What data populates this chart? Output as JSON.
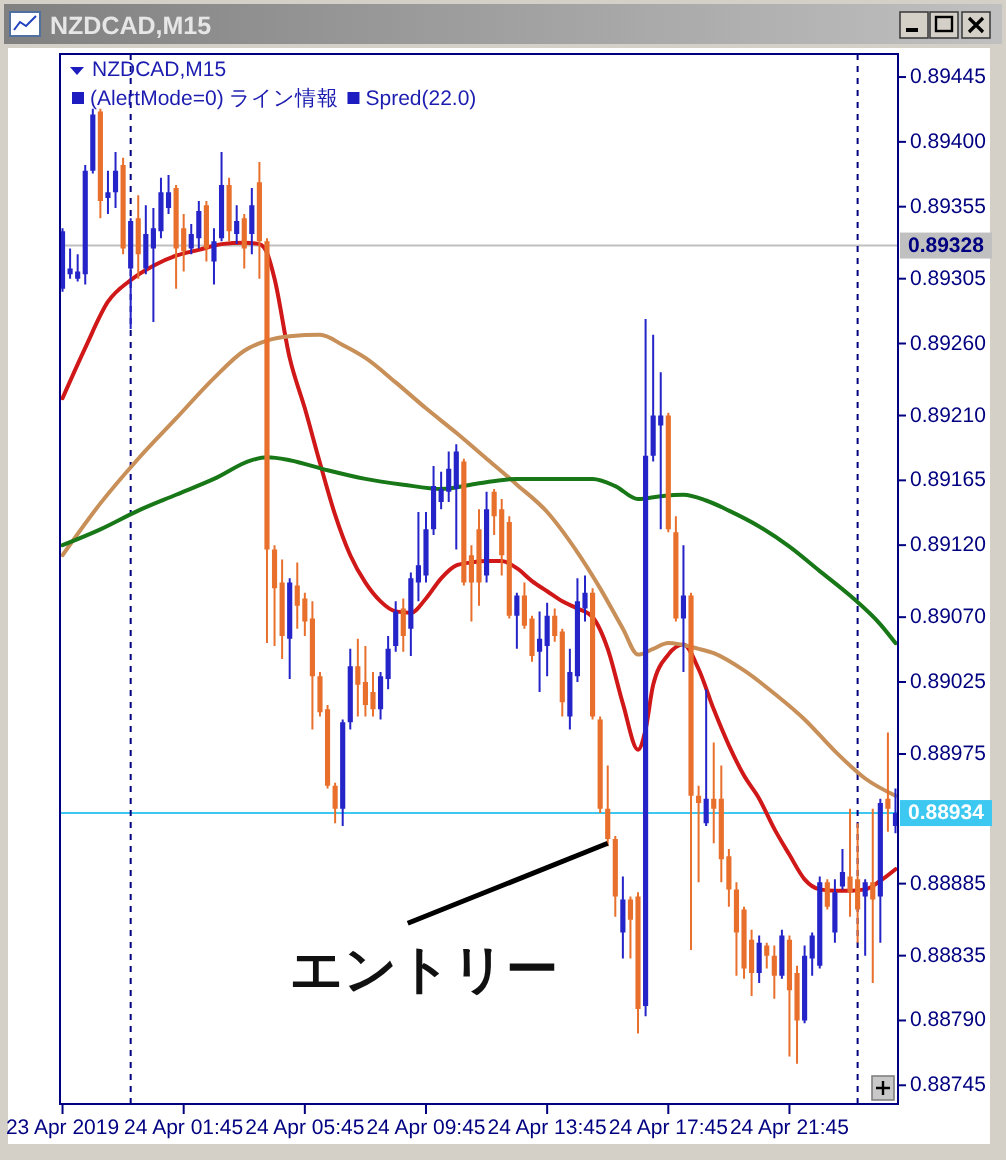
{
  "chart_data": {
    "type": "candlestick",
    "title": "NZDCAD,M15",
    "subtitle": "NZDCAD,M15",
    "annotations": [
      "(AlertMode=0) ライン情報",
      "Spred(22.0)",
      {
        "text": "エントリー",
        "x": "2019-04-24T15:45",
        "y": 0.88913
      }
    ],
    "x": [
      "2019-04-23T21:45",
      "2019-04-23T22:00",
      "2019-04-23T22:15",
      "2019-04-23T22:30",
      "2019-04-23T22:45",
      "2019-04-23T23:00",
      "2019-04-23T23:15",
      "2019-04-23T23:30",
      "2019-04-23T23:45",
      "2019-04-24T00:00",
      "2019-04-24T00:15",
      "2019-04-24T00:30",
      "2019-04-24T00:45",
      "2019-04-24T01:00",
      "2019-04-24T01:15",
      "2019-04-24T01:30",
      "2019-04-24T01:45",
      "2019-04-24T02:00",
      "2019-04-24T02:15",
      "2019-04-24T02:30",
      "2019-04-24T02:45",
      "2019-04-24T03:00",
      "2019-04-24T03:15",
      "2019-04-24T03:30",
      "2019-04-24T03:45",
      "2019-04-24T04:00",
      "2019-04-24T04:15",
      "2019-04-24T04:30",
      "2019-04-24T04:45",
      "2019-04-24T05:00",
      "2019-04-24T05:15",
      "2019-04-24T05:30",
      "2019-04-24T05:45",
      "2019-04-24T06:00",
      "2019-04-24T06:15",
      "2019-04-24T06:30",
      "2019-04-24T06:45",
      "2019-04-24T07:00",
      "2019-04-24T07:15",
      "2019-04-24T07:30",
      "2019-04-24T07:45",
      "2019-04-24T08:00",
      "2019-04-24T08:15",
      "2019-04-24T08:30",
      "2019-04-24T08:45",
      "2019-04-24T09:00",
      "2019-04-24T09:15",
      "2019-04-24T09:30",
      "2019-04-24T09:45",
      "2019-04-24T10:00",
      "2019-04-24T10:15",
      "2019-04-24T10:30",
      "2019-04-24T10:45",
      "2019-04-24T11:00",
      "2019-04-24T11:15",
      "2019-04-24T11:30",
      "2019-04-24T11:45",
      "2019-04-24T12:00",
      "2019-04-24T12:15",
      "2019-04-24T12:30",
      "2019-04-24T12:45",
      "2019-04-24T13:00",
      "2019-04-24T13:15",
      "2019-04-24T13:30",
      "2019-04-24T13:45",
      "2019-04-24T14:00",
      "2019-04-24T14:15",
      "2019-04-24T14:30",
      "2019-04-24T14:45",
      "2019-04-24T15:00",
      "2019-04-24T15:15",
      "2019-04-24T15:30",
      "2019-04-24T15:45",
      "2019-04-24T16:00",
      "2019-04-24T16:15",
      "2019-04-24T16:30",
      "2019-04-24T16:45",
      "2019-04-24T17:00",
      "2019-04-24T17:15",
      "2019-04-24T17:30",
      "2019-04-24T17:45",
      "2019-04-24T18:00",
      "2019-04-24T18:15",
      "2019-04-24T18:30",
      "2019-04-24T18:45",
      "2019-04-24T19:00",
      "2019-04-24T19:15",
      "2019-04-24T19:30",
      "2019-04-24T19:45",
      "2019-04-24T20:00",
      "2019-04-24T20:15",
      "2019-04-24T20:30",
      "2019-04-24T20:45",
      "2019-04-24T21:00",
      "2019-04-24T21:15",
      "2019-04-24T21:30",
      "2019-04-24T21:45",
      "2019-04-24T22:00",
      "2019-04-24T22:15",
      "2019-04-24T22:30",
      "2019-04-24T22:45",
      "2019-04-24T23:00",
      "2019-04-24T23:15",
      "2019-04-24T23:30",
      "2019-04-24T23:45",
      "2019-04-25T00:00",
      "2019-04-25T00:15",
      "2019-04-25T00:30",
      "2019-04-25T00:45",
      "2019-04-25T01:00",
      "2019-04-25T01:15"
    ],
    "ohlc": [
      [
        0.89298,
        0.8934,
        0.89296,
        0.89338
      ],
      [
        0.89308,
        0.89326,
        0.89305,
        0.89312
      ],
      [
        0.89305,
        0.89322,
        0.89303,
        0.8931
      ],
      [
        0.89308,
        0.89384,
        0.89301,
        0.8938
      ],
      [
        0.8938,
        0.89423,
        0.89378,
        0.89419
      ],
      [
        0.89421,
        0.89423,
        0.89347,
        0.89359
      ],
      [
        0.89361,
        0.8938,
        0.8935,
        0.89365
      ],
      [
        0.89365,
        0.89393,
        0.89354,
        0.8938
      ],
      [
        0.89384,
        0.89389,
        0.89322,
        0.89326
      ],
      [
        0.89312,
        0.89347,
        0.8927,
        0.89345
      ],
      [
        0.89347,
        0.89363,
        0.89305,
        0.89322
      ],
      [
        0.89312,
        0.89356,
        0.89308,
        0.89336
      ],
      [
        0.89326,
        0.89354,
        0.89275,
        0.8934
      ],
      [
        0.89338,
        0.89375,
        0.89333,
        0.89365
      ],
      [
        0.89354,
        0.89377,
        0.8935,
        0.89365
      ],
      [
        0.89368,
        0.8937,
        0.89298,
        0.89326
      ],
      [
        0.8934,
        0.8935,
        0.8931,
        0.89324
      ],
      [
        0.89326,
        0.89343,
        0.89322,
        0.89336
      ],
      [
        0.89333,
        0.89359,
        0.89326,
        0.89352
      ],
      [
        0.89356,
        0.89359,
        0.89317,
        0.89326
      ],
      [
        0.89317,
        0.8934,
        0.89301,
        0.89331
      ],
      [
        0.89333,
        0.89393,
        0.89331,
        0.8937
      ],
      [
        0.8937,
        0.89375,
        0.89331,
        0.89338
      ],
      [
        0.89336,
        0.89356,
        0.89329,
        0.89345
      ],
      [
        0.89347,
        0.8935,
        0.89312,
        0.89326
      ],
      [
        0.89336,
        0.89368,
        0.89322,
        0.89356
      ],
      [
        0.89372,
        0.89386,
        0.89305,
        0.89331
      ],
      [
        0.89331,
        0.89333,
        0.89052,
        0.89117
      ],
      [
        0.89117,
        0.8912,
        0.8905,
        0.8909
      ],
      [
        0.89094,
        0.8911,
        0.89041,
        0.89057
      ],
      [
        0.89055,
        0.89097,
        0.89027,
        0.89094
      ],
      [
        0.89092,
        0.89108,
        0.89062,
        0.89078
      ],
      [
        0.89083,
        0.89087,
        0.89057,
        0.89067
      ],
      [
        0.89069,
        0.89081,
        0.88992,
        0.89029
      ],
      [
        0.89029,
        0.89032,
        0.89001,
        0.89004
      ],
      [
        0.89006,
        0.89009,
        0.88951,
        0.88953
      ],
      [
        0.88953,
        0.88955,
        0.88927,
        0.88937
      ],
      [
        0.88937,
        0.88999,
        0.88925,
        0.88997
      ],
      [
        0.88997,
        0.89048,
        0.88992,
        0.89036
      ],
      [
        0.89036,
        0.89055,
        0.89001,
        0.89023
      ],
      [
        0.89025,
        0.8905,
        0.89001,
        0.89009
      ],
      [
        0.89018,
        0.89032,
        0.89001,
        0.89006
      ],
      [
        0.89006,
        0.89032,
        0.88999,
        0.89029
      ],
      [
        0.89027,
        0.89057,
        0.8902,
        0.89048
      ],
      [
        0.8905,
        0.89081,
        0.89046,
        0.89074
      ],
      [
        0.89076,
        0.89083,
        0.89046,
        0.89057
      ],
      [
        0.89062,
        0.89101,
        0.89043,
        0.89097
      ],
      [
        0.89094,
        0.89143,
        0.89081,
        0.89106
      ],
      [
        0.89099,
        0.89143,
        0.89094,
        0.89131
      ],
      [
        0.89131,
        0.89175,
        0.89127,
        0.89161
      ],
      [
        0.8915,
        0.89171,
        0.89145,
        0.89159
      ],
      [
        0.89157,
        0.89185,
        0.8915,
        0.89173
      ],
      [
        0.89159,
        0.8919,
        0.89117,
        0.89185
      ],
      [
        0.89178,
        0.8918,
        0.89092,
        0.89094
      ],
      [
        0.89113,
        0.8912,
        0.89067,
        0.89094
      ],
      [
        0.89131,
        0.89145,
        0.89078,
        0.89094
      ],
      [
        0.89099,
        0.89157,
        0.89094,
        0.89145
      ],
      [
        0.89157,
        0.89159,
        0.89127,
        0.8914
      ],
      [
        0.89145,
        0.89152,
        0.89099,
        0.89113
      ],
      [
        0.89136,
        0.8914,
        0.89069,
        0.89071
      ],
      [
        0.89071,
        0.89087,
        0.89048,
        0.89085
      ],
      [
        0.89085,
        0.89094,
        0.89062,
        0.89064
      ],
      [
        0.89069,
        0.89071,
        0.89039,
        0.89043
      ],
      [
        0.89046,
        0.89074,
        0.89018,
        0.89055
      ],
      [
        0.8905,
        0.8908,
        0.89029,
        0.89071
      ],
      [
        0.89071,
        0.89076,
        0.89053,
        0.89057
      ],
      [
        0.8906,
        0.89062,
        0.89001,
        0.89011
      ],
      [
        0.89001,
        0.89048,
        0.88992,
        0.89032
      ],
      [
        0.89029,
        0.89097,
        0.89025,
        0.89081
      ],
      [
        0.89076,
        0.89099,
        0.89067,
        0.89087
      ],
      [
        0.89087,
        0.8909,
        0.88999,
        0.89001
      ],
      [
        0.88999,
        0.89001,
        0.88934,
        0.88937
      ],
      [
        0.88937,
        0.88967,
        0.88911,
        0.88916
      ],
      [
        0.88916,
        0.88918,
        0.88862,
        0.88876
      ],
      [
        0.88851,
        0.8889,
        0.88833,
        0.88874
      ],
      [
        0.88874,
        0.88876,
        0.88833,
        0.8886
      ],
      [
        0.88876,
        0.88879,
        0.88781,
        0.88798
      ],
      [
        0.888,
        0.89277,
        0.88793,
        0.89182
      ],
      [
        0.89182,
        0.89266,
        0.89178,
        0.8921
      ],
      [
        0.89203,
        0.8924,
        0.89131,
        0.8921
      ],
      [
        0.8921,
        0.89212,
        0.89129,
        0.89131
      ],
      [
        0.89129,
        0.8914,
        0.89067,
        0.89069
      ],
      [
        0.89069,
        0.8912,
        0.89032,
        0.89085
      ],
      [
        0.89085,
        0.89087,
        0.88839,
        0.88946
      ],
      [
        0.88946,
        0.88953,
        0.88886,
        0.88941
      ],
      [
        0.88927,
        0.8902,
        0.88925,
        0.88944
      ],
      [
        0.88944,
        0.88983,
        0.88913,
        0.88937
      ],
      [
        0.88944,
        0.88967,
        0.88886,
        0.88902
      ],
      [
        0.88904,
        0.88909,
        0.88869,
        0.88881
      ],
      [
        0.88881,
        0.88886,
        0.88821,
        0.88851
      ],
      [
        0.88867,
        0.88869,
        0.88819,
        0.88826
      ],
      [
        0.88846,
        0.88853,
        0.88807,
        0.88823
      ],
      [
        0.88823,
        0.88849,
        0.88816,
        0.88844
      ],
      [
        0.88842,
        0.88844,
        0.88826,
        0.88835
      ],
      [
        0.88835,
        0.88842,
        0.88805,
        0.88821
      ],
      [
        0.88821,
        0.88853,
        0.88819,
        0.88849
      ],
      [
        0.88846,
        0.88849,
        0.88765,
        0.88811
      ],
      [
        0.88823,
        0.88828,
        0.8876,
        0.8879
      ],
      [
        0.8879,
        0.88842,
        0.88788,
        0.88835
      ],
      [
        0.88833,
        0.88851,
        0.88821,
        0.88849
      ],
      [
        0.88828,
        0.8889,
        0.88826,
        0.88886
      ],
      [
        0.88886,
        0.88888,
        0.88867,
        0.88869
      ],
      [
        0.88851,
        0.88888,
        0.88844,
        0.88879
      ],
      [
        0.88883,
        0.88909,
        0.88881,
        0.88893
      ],
      [
        0.8889,
        0.88937,
        0.88862,
        0.88879
      ],
      [
        0.88888,
        0.88927,
        0.88844,
        0.88867
      ],
      [
        0.88876,
        0.88888,
        0.88835,
        0.88886
      ],
      [
        0.88886,
        0.88937,
        0.88816,
        0.88874
      ],
      [
        0.88876,
        0.88944,
        0.88844,
        0.88941
      ],
      [
        0.88944,
        0.8899,
        0.88921,
        0.88937
      ],
      [
        0.88925,
        0.88951,
        0.8892,
        0.88934
      ]
    ],
    "colors": [
      "#2424c8",
      "#2424c8",
      "#2424c8",
      "#2424c8",
      "#2424c8",
      "#e8702c",
      "#2424c8",
      "#2424c8",
      "#e8702c",
      "#2424c8",
      "#e8702c",
      "#2424c8",
      "#2424c8",
      "#2424c8",
      "#2424c8",
      "#e8702c",
      "#e8702c",
      "#2424c8",
      "#2424c8",
      "#e8702c",
      "#2424c8",
      "#2424c8",
      "#e8702c",
      "#2424c8",
      "#e8702c",
      "#2424c8",
      "#e8702c",
      "#e8702c",
      "#e8702c",
      "#e8702c",
      "#2424c8",
      "#e8702c",
      "#e8702c",
      "#e8702c",
      "#e8702c",
      "#e8702c",
      "#e8702c",
      "#2424c8",
      "#2424c8",
      "#e8702c",
      "#e8702c",
      "#e8702c",
      "#2424c8",
      "#2424c8",
      "#2424c8",
      "#e8702c",
      "#2424c8",
      "#2424c8",
      "#2424c8",
      "#2424c8",
      "#2424c8",
      "#2424c8",
      "#2424c8",
      "#e8702c",
      "#e8702c",
      "#e8702c",
      "#2424c8",
      "#e8702c",
      "#e8702c",
      "#e8702c",
      "#2424c8",
      "#e8702c",
      "#e8702c",
      "#2424c8",
      "#2424c8",
      "#e8702c",
      "#e8702c",
      "#2424c8",
      "#2424c8",
      "#2424c8",
      "#e8702c",
      "#e8702c",
      "#e8702c",
      "#e8702c",
      "#2424c8",
      "#e8702c",
      "#e8702c",
      "#2424c8",
      "#2424c8",
      "#2424c8",
      "#e8702c",
      "#e8702c",
      "#2424c8",
      "#e8702c",
      "#e8702c",
      "#2424c8",
      "#e8702c",
      "#e8702c",
      "#e8702c",
      "#e8702c",
      "#e8702c",
      "#e8702c",
      "#2424c8",
      "#e8702c",
      "#e8702c",
      "#2424c8",
      "#e8702c",
      "#e8702c",
      "#2424c8",
      "#2424c8",
      "#2424c8",
      "#e8702c",
      "#2424c8",
      "#2424c8",
      "#e8702c",
      "#e8702c",
      "#2424c8",
      "#e8702c",
      "#2424c8",
      "#e8702c",
      "#2424c8"
    ],
    "series": [
      {
        "type": "line",
        "color": "#d01818",
        "x": [
          "2019-04-23T21:45",
          "2019-04-23T22:30",
          "2019-04-23T23:15",
          "2019-04-24T00:00",
          "2019-04-24T00:45",
          "2019-04-24T01:30",
          "2019-04-24T02:15",
          "2019-04-24T03:00",
          "2019-04-24T03:45",
          "2019-04-24T04:15",
          "2019-04-24T04:30",
          "2019-04-24T04:45",
          "2019-04-24T05:15",
          "2019-04-24T05:45",
          "2019-04-24T06:15",
          "2019-04-24T06:45",
          "2019-04-24T07:15",
          "2019-04-24T07:45",
          "2019-04-24T08:15",
          "2019-04-24T08:45",
          "2019-04-24T09:15",
          "2019-04-24T09:45",
          "2019-04-24T10:15",
          "2019-04-24T10:45",
          "2019-04-24T11:15",
          "2019-04-24T11:45",
          "2019-04-24T12:15",
          "2019-04-24T12:45",
          "2019-04-24T13:15",
          "2019-04-24T13:45",
          "2019-04-24T14:15",
          "2019-04-24T14:45",
          "2019-04-24T15:15",
          "2019-04-24T15:45",
          "2019-04-24T16:15",
          "2019-04-24T16:45",
          "2019-04-24T17:00",
          "2019-04-24T17:15",
          "2019-04-24T17:45",
          "2019-04-24T18:15",
          "2019-04-24T18:45",
          "2019-04-24T19:15",
          "2019-04-24T19:45",
          "2019-04-24T20:15",
          "2019-04-24T20:45",
          "2019-04-24T21:15",
          "2019-04-24T21:45",
          "2019-04-24T22:15",
          "2019-04-24T22:45",
          "2019-04-24T23:15",
          "2019-04-24T23:45",
          "2019-04-25T00:15",
          "2019-04-25T00:45",
          "2019-04-25T01:15"
        ],
        "values": [
          0.89222,
          0.89257,
          0.89289,
          0.89304,
          0.89314,
          0.89321,
          0.89325,
          0.89329,
          0.8933,
          0.89329,
          0.89323,
          0.89305,
          0.8925,
          0.89215,
          0.89177,
          0.89141,
          0.89113,
          0.89094,
          0.89081,
          0.89074,
          0.89073,
          0.89083,
          0.89097,
          0.89106,
          0.89108,
          0.89109,
          0.89109,
          0.89104,
          0.89095,
          0.89088,
          0.89081,
          0.89076,
          0.8907,
          0.89048,
          0.8901,
          0.88978,
          0.88992,
          0.89023,
          0.89044,
          0.89051,
          0.89034,
          0.89006,
          0.88981,
          0.8896,
          0.88944,
          0.88923,
          0.88905,
          0.88888,
          0.88881,
          0.8888,
          0.8888,
          0.88881,
          0.88887,
          0.88895
        ]
      },
      {
        "type": "line",
        "color": "#c89058",
        "x": [
          "2019-04-23T21:45",
          "2019-04-23T23:00",
          "2019-04-24T00:15",
          "2019-04-24T01:30",
          "2019-04-24T02:45",
          "2019-04-24T03:45",
          "2019-04-24T04:30",
          "2019-04-24T05:15",
          "2019-04-24T06:15",
          "2019-04-24T07:00",
          "2019-04-24T07:45",
          "2019-04-24T08:45",
          "2019-04-24T09:45",
          "2019-04-24T10:45",
          "2019-04-24T11:45",
          "2019-04-24T12:45",
          "2019-04-24T13:45",
          "2019-04-24T14:45",
          "2019-04-24T15:30",
          "2019-04-24T16:15",
          "2019-04-24T16:45",
          "2019-04-24T17:15",
          "2019-04-24T17:45",
          "2019-04-24T18:45",
          "2019-04-24T19:15",
          "2019-04-24T20:15",
          "2019-04-24T21:15",
          "2019-04-24T22:15",
          "2019-04-24T23:15",
          "2019-04-25T00:15",
          "2019-04-25T01:15"
        ],
        "values": [
          0.89113,
          0.89149,
          0.8918,
          0.89208,
          0.89236,
          0.89255,
          0.89262,
          0.89265,
          0.89266,
          0.89259,
          0.8925,
          0.89233,
          0.89215,
          0.89198,
          0.8918,
          0.89162,
          0.89143,
          0.89115,
          0.8909,
          0.89062,
          0.89044,
          0.89048,
          0.89052,
          0.89048,
          0.89045,
          0.89033,
          0.89017,
          0.88999,
          0.88977,
          0.88958,
          0.88946
        ]
      },
      {
        "type": "line",
        "color": "#187818",
        "x": [
          "2019-04-23T21:45",
          "2019-04-23T23:00",
          "2019-04-24T00:15",
          "2019-04-24T01:30",
          "2019-04-24T02:45",
          "2019-04-24T04:00",
          "2019-04-24T04:30",
          "2019-04-24T05:15",
          "2019-04-24T06:30",
          "2019-04-24T07:45",
          "2019-04-24T09:00",
          "2019-04-24T10:15",
          "2019-04-24T11:30",
          "2019-04-24T12:45",
          "2019-04-24T14:00",
          "2019-04-24T15:15",
          "2019-04-24T16:00",
          "2019-04-24T16:45",
          "2019-04-24T17:30",
          "2019-04-24T18:15",
          "2019-04-24T19:00",
          "2019-04-24T19:45",
          "2019-04-24T20:45",
          "2019-04-24T21:45",
          "2019-04-24T22:45",
          "2019-04-24T23:45",
          "2019-04-25T00:45",
          "2019-04-25T01:15"
        ],
        "values": [
          0.8912,
          0.89131,
          0.89144,
          0.89155,
          0.89166,
          0.89179,
          0.89181,
          0.89179,
          0.89172,
          0.89166,
          0.89162,
          0.89159,
          0.89163,
          0.89166,
          0.89166,
          0.89166,
          0.89161,
          0.89152,
          0.89154,
          0.89155,
          0.89151,
          0.89144,
          0.89133,
          0.89119,
          0.89102,
          0.89085,
          0.89065,
          0.89052
        ]
      }
    ],
    "xlim": [
      "2019-04-23T21:40",
      "2019-04-25T01:20"
    ],
    "xticks": [
      {
        "value": "2019-04-23T21:45",
        "label": "23 Apr 2019"
      },
      {
        "value": "2019-04-24T01:45",
        "label": "24 Apr 01:45"
      },
      {
        "value": "2019-04-24T05:45",
        "label": "24 Apr 05:45"
      },
      {
        "value": "2019-04-24T09:45",
        "label": "24 Apr 09:45"
      },
      {
        "value": "2019-04-24T13:45",
        "label": "24 Apr 13:45"
      },
      {
        "value": "2019-04-24T17:45",
        "label": "24 Apr 17:45"
      },
      {
        "value": "2019-04-24T21:45",
        "label": "24 Apr 21:45"
      }
    ],
    "ylim": [
      0.88732,
      0.89461
    ],
    "yticks": [
      0.89445,
      {
        "value": 0.894,
        "label": "0.89400"
      },
      0.89355,
      0.89305,
      {
        "value": 0.8926,
        "label": "0.89260"
      },
      {
        "value": 0.8921,
        "label": "0.89210"
      },
      0.89165,
      {
        "value": 0.8912,
        "label": "0.89120"
      },
      {
        "value": 0.8907,
        "label": "0.89070"
      },
      0.89025,
      0.88975,
      0.88885,
      0.88835,
      {
        "value": 0.8879,
        "label": "0.88790"
      },
      0.88745
    ],
    "ref_lines": [
      {
        "axis": "y",
        "value": 0.89328,
        "label": "0.89328",
        "color": "#c0c0c0"
      },
      {
        "axis": "y",
        "value": 0.88934,
        "label": "0.88934",
        "color": "#3cc8f0"
      },
      {
        "axis": "x",
        "value": "2019-04-24T00:00",
        "color": "#000080",
        "line_style": "dashed"
      },
      {
        "axis": "x",
        "value": "2019-04-25T00:00",
        "color": "#000080",
        "line_style": "dashed"
      }
    ]
  }
}
